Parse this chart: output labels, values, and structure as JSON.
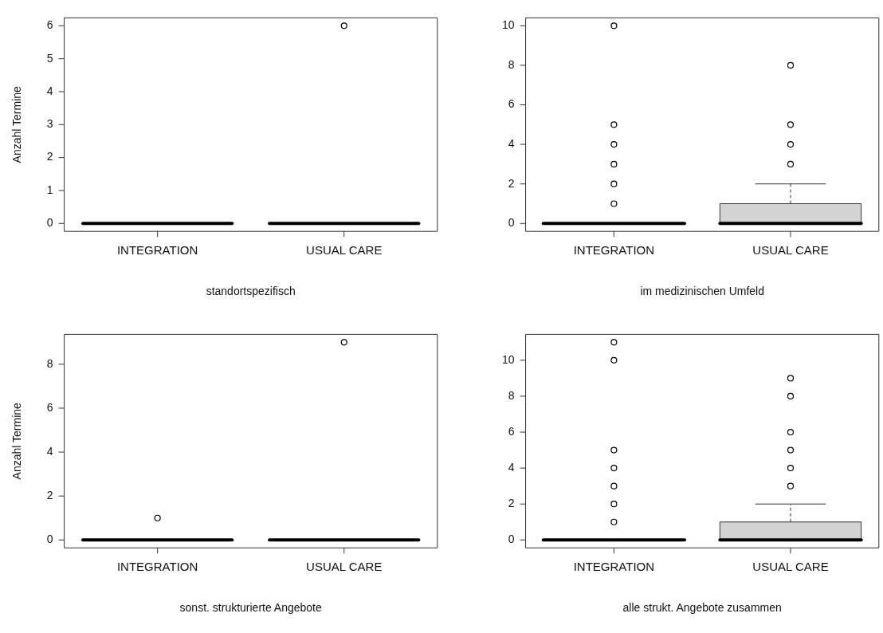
{
  "chart_data": [
    {
      "type": "box",
      "xlabel": "standortspezifisch",
      "ylabel": "Anzahl Termine",
      "categories": [
        "INTEGRATION",
        "USUAL CARE"
      ],
      "color": "#d3d3d3",
      "ylim": [
        -0.24,
        6.24
      ],
      "yticks": [
        0,
        1,
        2,
        3,
        4,
        5,
        6
      ],
      "legend": false,
      "boxes": [
        {
          "low": 0,
          "q1": 0,
          "median": 0,
          "q3": 0,
          "high": 0
        },
        {
          "low": 0,
          "q1": 0,
          "median": 0,
          "q3": 0,
          "high": 0,
          "outliers": [
            6
          ]
        }
      ]
    },
    {
      "type": "box",
      "xlabel": "im medizinischen Umfeld",
      "categories": [
        "INTEGRATION",
        "USUAL CARE"
      ],
      "color": "#d3d3d3",
      "ylim": [
        -0.4,
        10.4
      ],
      "yticks": [
        0,
        2,
        4,
        6,
        8,
        10
      ],
      "legend": false,
      "boxes": [
        {
          "low": 0,
          "q1": 0,
          "median": 0,
          "q3": 0,
          "high": 0,
          "outliers": [
            1,
            2,
            3,
            4,
            5,
            10
          ]
        },
        {
          "low": 0,
          "q1": 0,
          "median": 0,
          "q3": 1,
          "high": 2,
          "outliers": [
            3,
            4,
            5,
            8
          ]
        }
      ]
    },
    {
      "type": "box",
      "xlabel": "sonst. strukturierte Angebote",
      "ylabel": "Anzahl Termine",
      "categories": [
        "INTEGRATION",
        "USUAL CARE"
      ],
      "color": "#d3d3d3",
      "ylim": [
        -0.36,
        9.36
      ],
      "yticks": [
        0,
        2,
        4,
        6,
        8
      ],
      "legend": false,
      "boxes": [
        {
          "low": 0,
          "q1": 0,
          "median": 0,
          "q3": 0,
          "high": 0,
          "outliers": [
            1
          ]
        },
        {
          "low": 0,
          "q1": 0,
          "median": 0,
          "q3": 0,
          "high": 0,
          "outliers": [
            9
          ]
        }
      ]
    },
    {
      "type": "box",
      "xlabel": "alle strukt. Angebote zusammen",
      "categories": [
        "INTEGRATION",
        "USUAL CARE"
      ],
      "color": "#d3d3d3",
      "ylim": [
        -0.44,
        11.44
      ],
      "yticks": [
        0,
        2,
        4,
        6,
        8,
        10
      ],
      "legend": false,
      "boxes": [
        {
          "low": 0,
          "q1": 0,
          "median": 0,
          "q3": 0,
          "high": 0,
          "outliers": [
            1,
            2,
            3,
            4,
            5,
            10,
            11
          ]
        },
        {
          "low": 0,
          "q1": 0,
          "median": 0,
          "q3": 1,
          "high": 2,
          "outliers": [
            3,
            4,
            5,
            6,
            8,
            9
          ]
        }
      ]
    }
  ]
}
